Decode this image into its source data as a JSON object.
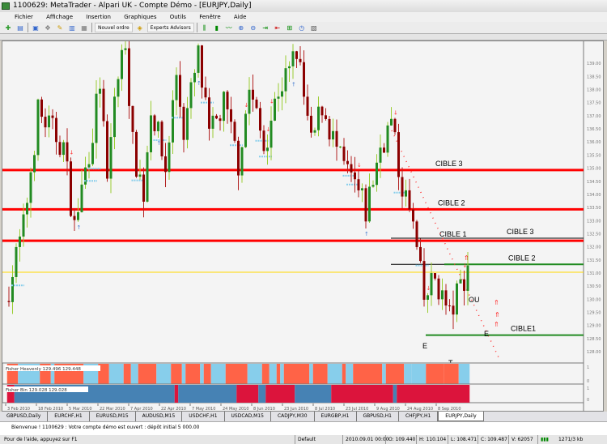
{
  "window": {
    "title": "1100629: MetaTrader - Alpari UK - Compte Démo - [EURJPY,Daily]"
  },
  "menu": [
    "Fichier",
    "Affichage",
    "Insertion",
    "Graphiques",
    "Outils",
    "Fenêtre",
    "Aide"
  ],
  "toolbar": {
    "new_order": "Nouvel ordre",
    "experts": "Experts Advisors"
  },
  "chart": {
    "symbol": "EURJPY",
    "timeframe": "Daily",
    "price_path": [
      [
        0,
        129.9
      ],
      [
        5,
        132.7
      ],
      [
        9,
        137.1
      ],
      [
        16,
        135.8
      ],
      [
        19,
        132.7
      ],
      [
        24,
        136.4
      ],
      [
        26,
        138.3
      ],
      [
        28,
        134.3
      ],
      [
        30,
        137.7
      ],
      [
        33,
        139.9
      ],
      [
        35,
        135.8
      ],
      [
        38,
        134.0
      ],
      [
        40,
        137.4
      ],
      [
        44,
        134.9
      ],
      [
        47,
        138.6
      ],
      [
        49,
        136.4
      ],
      [
        53,
        139.2
      ],
      [
        56,
        136.1
      ],
      [
        60,
        137.4
      ],
      [
        64,
        135.2
      ],
      [
        67,
        138.0
      ],
      [
        71,
        135.8
      ],
      [
        75,
        138.0
      ],
      [
        78,
        138.6
      ],
      [
        80,
        139.5
      ],
      [
        84,
        135.8
      ],
      [
        87,
        137.4
      ],
      [
        92,
        135.2
      ],
      [
        96,
        134.3
      ],
      [
        99,
        133.3
      ],
      [
        103,
        135.8
      ],
      [
        106,
        136.7
      ],
      [
        108,
        134.9
      ],
      [
        112,
        132.7
      ],
      [
        115,
        129.9
      ],
      [
        118,
        130.8
      ],
      [
        122,
        129.3
      ],
      [
        125,
        130.5
      ],
      [
        127,
        131.2
      ]
    ],
    "levels": [
      {
        "label": "CIBLE 3",
        "price": 134.9,
        "color": "#ff0000"
      },
      {
        "label": "CIBLE 2",
        "price": 133.4,
        "color": "#ff0000"
      },
      {
        "label": "CIBLE 1",
        "price": 132.2,
        "color": "#ff0000"
      },
      {
        "label": "",
        "price": 131.0,
        "color": "#ffd700"
      }
    ],
    "targets": [
      {
        "label": "CIBLE 3",
        "price": 132.3,
        "color": "#000000"
      },
      {
        "label": "CIBLE 2",
        "price": 131.3,
        "color": "#228b22"
      },
      {
        "label": "CIBLE1",
        "price": 128.6,
        "color": "#228b22"
      }
    ],
    "annotations": [
      "OU",
      "E",
      "E",
      "T"
    ],
    "colors": {
      "bull": "#228b22",
      "bear": "#8b0000",
      "up_arrow": "#4a7fd0",
      "down_arrow": "#ff3030"
    }
  },
  "indicators": [
    {
      "name": "Fisher Heavenly 129.496 129.448",
      "colors": [
        "#87ceeb",
        "#ff6347"
      ],
      "segments": [
        [
          1,
          3
        ],
        [
          0,
          6
        ],
        [
          1,
          3
        ],
        [
          0,
          1
        ],
        [
          1,
          8
        ],
        [
          0,
          4
        ],
        [
          1,
          3
        ],
        [
          0,
          4
        ],
        [
          1,
          2
        ],
        [
          0,
          2
        ],
        [
          1,
          5
        ],
        [
          0,
          4
        ],
        [
          1,
          3
        ],
        [
          0,
          1
        ],
        [
          1,
          4
        ],
        [
          0,
          1
        ],
        [
          1,
          2
        ],
        [
          0,
          4
        ],
        [
          1,
          6
        ],
        [
          0,
          4
        ],
        [
          1,
          2
        ],
        [
          0,
          2
        ],
        [
          1,
          1
        ],
        [
          0,
          1
        ],
        [
          1,
          7
        ],
        [
          0,
          1
        ],
        [
          1,
          4
        ],
        [
          0,
          4
        ],
        [
          1,
          1
        ],
        [
          0,
          2
        ],
        [
          1,
          8
        ],
        [
          0,
          1
        ],
        [
          1,
          5
        ],
        [
          0,
          2
        ],
        [
          0,
          4
        ],
        [
          1,
          5
        ],
        [
          1,
          4
        ],
        [
          0,
          3
        ]
      ]
    },
    {
      "name": "Fisher Bin 129.028 129.028",
      "colors": [
        "#4682b4",
        "#dc143c"
      ],
      "segments": [
        [
          1,
          2
        ],
        [
          0,
          44
        ],
        [
          1,
          1
        ],
        [
          0,
          16
        ],
        [
          1,
          6
        ],
        [
          0,
          2
        ],
        [
          1,
          8
        ],
        [
          0,
          10
        ],
        [
          1,
          17
        ],
        [
          0,
          1
        ],
        [
          1,
          20
        ]
      ]
    }
  ],
  "time_axis": [
    "3 Feb 2010",
    "18 Feb 2010",
    "5 Mar 2010",
    "22 Mar 2010",
    "7 Apr 2010",
    "22 Apr 2010",
    "7 May 2010",
    "24 May 2010",
    "8 Jun 2010",
    "23 Jun 2010",
    "8 Jul 2010",
    "23 Jul 2010",
    "9 Aug 2010",
    "24 Aug 2010",
    "8 Sep 2010"
  ],
  "tabs": [
    "GBPUSD,Daily",
    "EURCHF,H1",
    "EURUSD,M15",
    "AUDUSD,M15",
    "USDCHF,H1",
    "USDCAD,M15",
    "CADJPY,M30",
    "EURGBP,H1",
    "GBPUSD,H1",
    "CHFJPY,H1",
    "EURJPY,Daily"
  ],
  "terminal": {
    "message": "Bienvenue ! 1100629 : Votre compte démo est ouvert : dépôt initial 5 000.00"
  },
  "status": {
    "help": "Pour de l'aide, appuyez sur F1",
    "profile": "Default",
    "datetime": "2010.09.01 00:00",
    "open": "O: 109.440",
    "high": "H: 110.104",
    "low": "L: 108.471",
    "close": "C: 109.487",
    "volume": "V: 62057",
    "traffic": "1271/3 kb"
  }
}
